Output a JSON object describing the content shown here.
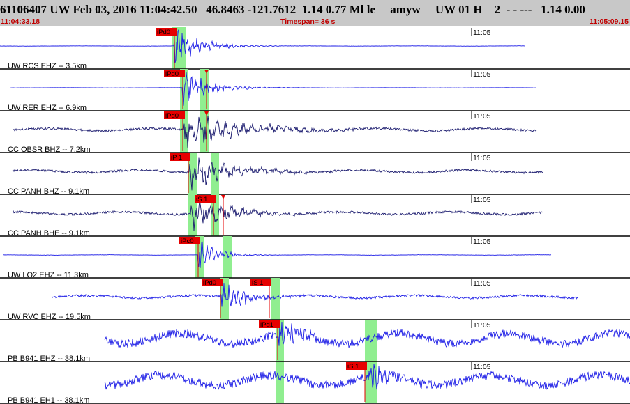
{
  "header": {
    "title": "61106407 UW Feb 03, 2016 11:04:42.50   46.8463 -121.7612  1.14 0.77 Ml le     amyw     UW 01 H    2  - - ---   1.14 0.00",
    "start_time": "11:04:33.18",
    "timespan": "Timespan=  36 s",
    "end_time": "11:05:09.15"
  },
  "colors": {
    "header_bg": "#c8c8c8",
    "accent_red": "#c00000",
    "trace_blue": "#1a1ae6",
    "trace_navy": "#1a1a6e",
    "pick_red": "#e60000",
    "window_green": "#90ee90"
  },
  "traces": [
    {
      "label": "UW RCS EHZ -- 3.5km",
      "color": "#1a1ae6",
      "start": 0,
      "end": 752,
      "onset": 250,
      "amp": 28,
      "decay": 35,
      "noise": 0.3,
      "freq": 0.9,
      "windows": [
        [
          246,
          266
        ]
      ],
      "time_mark": "11:05",
      "picks": [
        {
          "label": "iPd0",
          "x": 250
        }
      ]
    },
    {
      "label": "UW RER EHZ -- 6.9km",
      "color": "#1a1ae6",
      "start": 15,
      "end": 768,
      "onset": 262,
      "amp": 26,
      "decay": 35,
      "noise": 0.3,
      "freq": 0.9,
      "windows": [
        [
          258,
          270
        ],
        [
          287,
          299
        ]
      ],
      "time_mark": "11:05",
      "picks": [
        {
          "label": "iPd0",
          "x": 262
        },
        {
          "label": "",
          "x": 296
        }
      ]
    },
    {
      "label": "CC OBSR BHZ -- 7.2km",
      "color": "#1a1a6e",
      "start": 18,
      "end": 768,
      "onset": 264,
      "amp": 26,
      "decay": 80,
      "noise": 3,
      "freq": 0.5,
      "windows": [
        [
          258,
          270
        ],
        [
          287,
          299
        ]
      ],
      "time_mark": "11:05",
      "picks": [
        {
          "label": "iPd0",
          "x": 262
        },
        {
          "label": "",
          "x": 296
        }
      ]
    },
    {
      "label": "CC PANH BHZ -- 9.1km",
      "color": "#1a1a6e",
      "start": 18,
      "end": 778,
      "onset": 272,
      "amp": 24,
      "decay": 60,
      "noise": 3,
      "freq": 0.35,
      "windows": [
        [
          270,
          282
        ],
        [
          302,
          314
        ]
      ],
      "time_mark": "11:05",
      "picks": [
        {
          "label": "iP 1",
          "x": 270
        }
      ]
    },
    {
      "label": "CC PANH BHE -- 9.1km",
      "color": "#1a1a6e",
      "start": 18,
      "end": 778,
      "onset": 274,
      "amp": 24,
      "decay": 55,
      "noise": 3,
      "freq": 0.4,
      "windows": [
        [
          270,
          282
        ],
        [
          302,
          314
        ]
      ],
      "time_mark": "11:05",
      "picks": [
        {
          "label": "iS 1",
          "x": 306
        },
        {
          "label": "",
          "x": 320
        }
      ]
    },
    {
      "label": "UW LO2 EHZ -- 11.3km",
      "color": "#1a1ae6",
      "start": 5,
      "end": 790,
      "onset": 284,
      "amp": 24,
      "decay": 25,
      "noise": 0.4,
      "freq": 0.9,
      "windows": [
        [
          280,
          292
        ],
        [
          320,
          333
        ]
      ],
      "time_mark": "11:05",
      "picks": [
        {
          "label": "iPc0",
          "x": 284
        }
      ]
    },
    {
      "label": "UW RVC EHZ -- 19.5km",
      "color": "#1a1ae6",
      "start": 75,
      "end": 828,
      "onset": 316,
      "amp": 20,
      "decay": 40,
      "noise": 3,
      "freq": 0.9,
      "windows": [
        [
          316,
          328
        ],
        [
          388,
          401
        ]
      ],
      "time_mark": "11:05",
      "picks": [
        {
          "label": "iPd0",
          "x": 316
        },
        {
          "label": "iS 1",
          "x": 386
        }
      ]
    },
    {
      "label": "PB B941 EHZ -- 38.1km",
      "color": "#1a1ae6",
      "start": 150,
      "end": 903,
      "onset": 398,
      "amp": 24,
      "decay": 30,
      "noise": 12,
      "freq": 0.9,
      "windows": [
        [
          395,
          407
        ],
        [
          523,
          540
        ]
      ],
      "time_mark": "11:05",
      "picks": [
        {
          "label": "iPd1",
          "x": 398
        }
      ]
    },
    {
      "label": "PB B941 EH1 -- 38.1km",
      "color": "#1a1ae6",
      "start": 150,
      "end": 903,
      "onset": 525,
      "amp": 24,
      "decay": 30,
      "noise": 12,
      "freq": 0.9,
      "windows": [
        [
          395,
          407
        ],
        [
          523,
          540
        ]
      ],
      "time_mark": "11:05",
      "picks": [
        {
          "label": "iS 1",
          "x": 523
        }
      ]
    }
  ]
}
